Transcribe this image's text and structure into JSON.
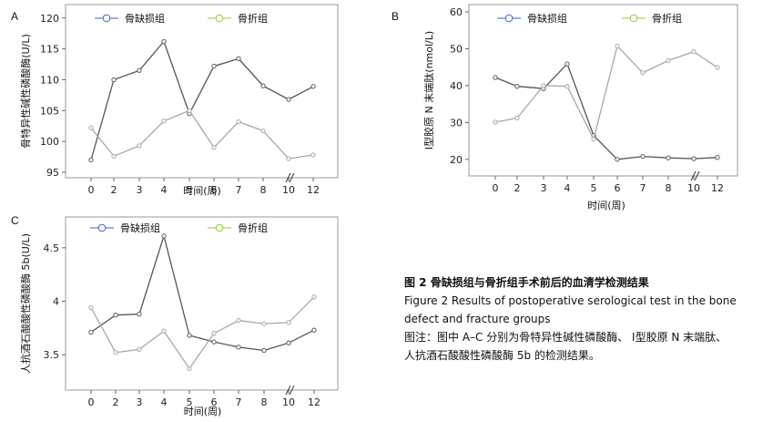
{
  "chart_data": [
    {
      "panel_label": "A",
      "type": "line",
      "categories": [
        "0",
        "2",
        "3",
        "4",
        "5",
        "6",
        "7",
        "8",
        "10",
        "12"
      ],
      "axis_break_between": [
        "8",
        "10"
      ],
      "ylabel": "骨特异性碱性磷酸酶(U/L)",
      "xlabel": "时间(周)",
      "ylim": [
        95,
        121
      ],
      "yticks": [
        95,
        100,
        105,
        110,
        115,
        120
      ],
      "grid": false,
      "legend_position": "top",
      "series": [
        {
          "name": "骨缺损组",
          "color": "#4a5bd0",
          "line_color": "#555555",
          "values": [
            97.0,
            110.0,
            111.5,
            116.2,
            104.5,
            112.2,
            113.4,
            109.0,
            106.8,
            108.9
          ]
        },
        {
          "name": "骨折组",
          "color": "#88cc33",
          "line_color": "#a8a8a8",
          "values": [
            102.2,
            97.6,
            99.3,
            103.3,
            105.0,
            99.0,
            103.2,
            101.7,
            97.2,
            97.8
          ]
        }
      ]
    },
    {
      "panel_label": "B",
      "type": "line",
      "categories": [
        "0",
        "2",
        "3",
        "4",
        "5",
        "6",
        "7",
        "8",
        "10",
        "12"
      ],
      "axis_break_between": [
        "8",
        "10"
      ],
      "ylabel": "Ⅰ型胶原 N 末端肽(nmol/L)",
      "xlabel": "时间(周)",
      "ylim": [
        17,
        60
      ],
      "yticks": [
        20,
        30,
        40,
        50,
        60
      ],
      "grid": false,
      "legend_position": "top",
      "series": [
        {
          "name": "骨缺损组",
          "color": "#4a5bd0",
          "line_color": "#555555",
          "values": [
            42.2,
            39.8,
            39.2,
            45.9,
            26.5,
            20.0,
            20.8,
            20.4,
            20.2,
            20.5
          ]
        },
        {
          "name": "骨折组",
          "color": "#88cc33",
          "line_color": "#a8a8a8",
          "values": [
            30.1,
            31.2,
            40.0,
            39.8,
            25.5,
            50.7,
            43.5,
            46.8,
            49.2,
            44.9
          ]
        }
      ]
    },
    {
      "panel_label": "C",
      "type": "line",
      "categories": [
        "0",
        "2",
        "3",
        "4",
        "5",
        "6",
        "7",
        "8",
        "10",
        "12"
      ],
      "axis_break_between": [
        "8",
        "10"
      ],
      "ylabel": "人抗酒石酸酸性磷酸酶 5b(U/L)",
      "xlabel": "时间(周)",
      "ylim": [
        3.22,
        4.72
      ],
      "yticks": [
        3.5,
        4.0,
        4.5
      ],
      "grid": false,
      "legend_position": "top",
      "series": [
        {
          "name": "骨缺损组",
          "color": "#4a5bd0",
          "line_color": "#555555",
          "values": [
            3.71,
            3.87,
            3.88,
            4.61,
            3.68,
            3.62,
            3.57,
            3.54,
            3.61,
            3.73
          ]
        },
        {
          "name": "骨折组",
          "color": "#88cc33",
          "line_color": "#a8a8a8",
          "values": [
            3.94,
            3.52,
            3.55,
            3.72,
            3.37,
            3.7,
            3.82,
            3.79,
            3.8,
            4.04
          ]
        }
      ]
    }
  ],
  "caption": {
    "zh_title": "图 2   骨缺损组与骨折组手术前后的血清学检测结果",
    "en_line1": "Figure 2    Results of postoperative serological test in the bone",
    "en_line2": "defect and fracture groups",
    "zh_note_line1": "图注：图中 A–C 分别为骨特异性碱性磷酸酶、 Ⅰ型胶原 N 末端肽、",
    "zh_note_line2": "人抗酒石酸酸性磷酸酶 5b 的检测结果。"
  }
}
